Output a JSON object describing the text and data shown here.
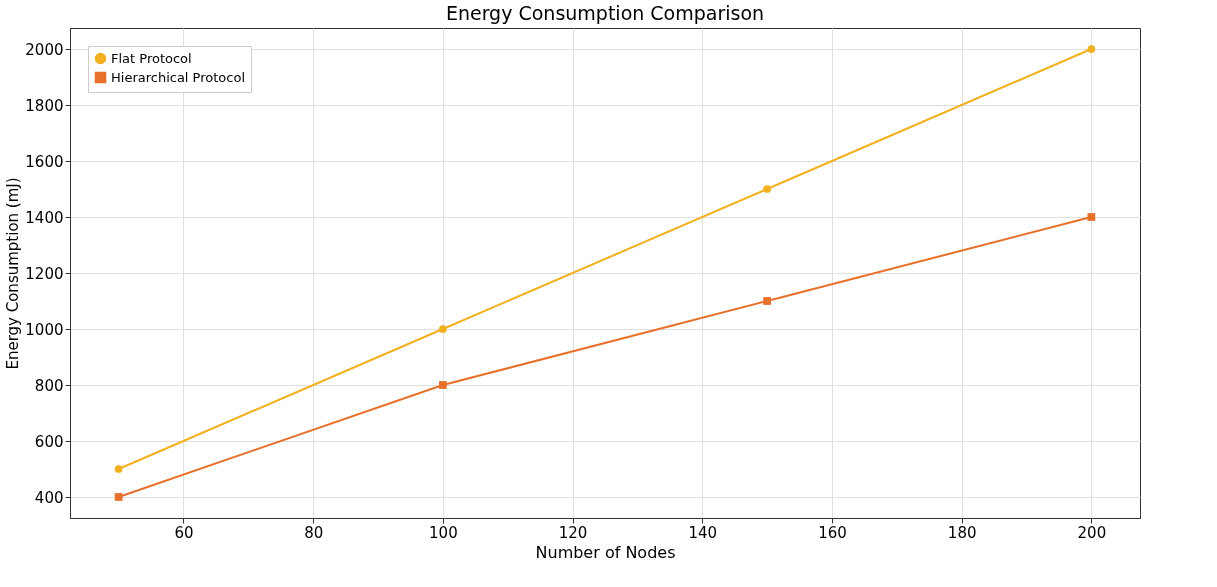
{
  "chart_data": {
    "type": "line",
    "title": "Energy Consumption Comparison",
    "xlabel": "Number of Nodes",
    "ylabel": "Energy Consumption (mJ)",
    "x": [
      50,
      100,
      150,
      200
    ],
    "series": [
      {
        "name": "Flat Protocol",
        "color": "#f2b01e",
        "marker": "circle",
        "values": [
          500,
          1000,
          1500,
          2000
        ]
      },
      {
        "name": "Hierarchical Protocol",
        "color": "#e8702a",
        "marker": "square",
        "values": [
          400,
          800,
          1100,
          1400
        ]
      }
    ],
    "xlim": [
      42.5,
      207.5
    ],
    "ylim": [
      325,
      2075
    ],
    "xticks": [
      60,
      80,
      100,
      120,
      140,
      160,
      180,
      200
    ],
    "yticks": [
      400,
      600,
      800,
      1000,
      1200,
      1400,
      1600,
      1800,
      2000
    ],
    "grid": true,
    "legend": "top left",
    "line_style": "solid"
  }
}
